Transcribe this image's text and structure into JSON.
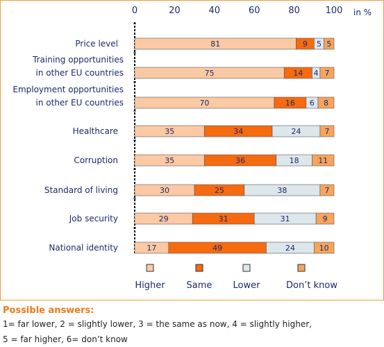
{
  "chart_data": {
    "type": "bar",
    "stacked": true,
    "orientation": "horizontal",
    "unit": "in %",
    "xlim": [
      0,
      100
    ],
    "xticks": [
      "0",
      "20",
      "40",
      "60",
      "80",
      "100"
    ],
    "categories": [
      [
        "Price level"
      ],
      [
        "Training opportunities",
        "in other EU countries"
      ],
      [
        "Employment opportunities",
        "in other EU countries"
      ],
      [
        "Healthcare"
      ],
      [
        "Corruption"
      ],
      [
        "Standard of living"
      ],
      [
        "Job security"
      ],
      [
        "National identity"
      ]
    ],
    "series": [
      {
        "name": "Higher",
        "color": "#fbc9a3",
        "values": [
          81,
          75,
          70,
          35,
          35,
          30,
          29,
          17
        ]
      },
      {
        "name": "Same",
        "color": "#f66a10",
        "values": [
          9,
          14,
          16,
          34,
          36,
          25,
          31,
          49
        ]
      },
      {
        "name": "Lower",
        "color": "#dde6ea",
        "values": [
          5,
          4,
          6,
          24,
          18,
          38,
          31,
          24
        ]
      },
      {
        "name": "Don’t know",
        "color": "#f8a45c",
        "values": [
          5,
          7,
          8,
          7,
          11,
          7,
          9,
          10
        ]
      }
    ]
  },
  "notes": {
    "title": "Possible answers:",
    "line1": "1= far lower, 2 = slightly lower, 3 = the same as now, 4 = slightly higher,",
    "line2": "5 = far higher, 6= don’t know"
  }
}
